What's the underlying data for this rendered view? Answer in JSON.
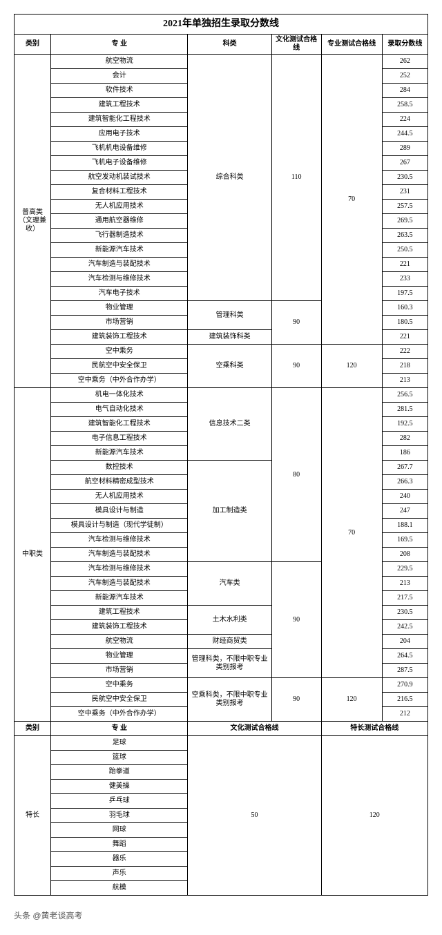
{
  "title": "2021年单独招生录取分数线",
  "headers": {
    "cat": "类别",
    "major": "专 业",
    "subj": "科类",
    "cul": "文化测试合格线",
    "pro": "专业测试合格线",
    "score": "录取分数线",
    "cul2": "文化测试合格线",
    "pro2": "特长测试合格线"
  },
  "cat1": "普高类（文理兼收）",
  "cat2": "中职类",
  "cat3": "特长",
  "subj_a": "综合科类",
  "subj_b": "管理科类",
  "subj_c": "建筑装饰科类",
  "subj_d": "空乘科类",
  "subj_e": "信息技术二类",
  "subj_f": "加工制造类",
  "subj_g": "汽车类",
  "subj_h": "土木水利类",
  "subj_i": "财经商贸类",
  "subj_j": "管理科类，不限中职专业类别报考",
  "subj_k": "空乘科类，不限中职专业类别报考",
  "cul_110": "110",
  "cul_90": "90",
  "cul_80": "80",
  "cul_50": "50",
  "pro_70": "70",
  "pro_120": "120",
  "p1": [
    {
      "m": "航空物流",
      "s": "262"
    },
    {
      "m": "会计",
      "s": "252"
    },
    {
      "m": "软件技术",
      "s": "284"
    },
    {
      "m": "建筑工程技术",
      "s": "258.5"
    },
    {
      "m": "建筑智能化工程技术",
      "s": "224"
    },
    {
      "m": "应用电子技术",
      "s": "244.5"
    },
    {
      "m": "飞机机电设备维修",
      "s": "289"
    },
    {
      "m": "飞机电子设备维修",
      "s": "267"
    },
    {
      "m": "航空发动机装试技术",
      "s": "230.5"
    },
    {
      "m": "复合材料工程技术",
      "s": "231"
    },
    {
      "m": "无人机应用技术",
      "s": "257.5"
    },
    {
      "m": "通用航空器维修",
      "s": "269.5"
    },
    {
      "m": "飞行器制造技术",
      "s": "263.5"
    },
    {
      "m": "新能源汽车技术",
      "s": "250.5"
    },
    {
      "m": "汽车制造与装配技术",
      "s": "221"
    },
    {
      "m": "汽车检测与维修技术",
      "s": "233"
    },
    {
      "m": "汽车电子技术",
      "s": "197.5"
    }
  ],
  "p1b": [
    {
      "m": "物业管理",
      "s": "160.3"
    },
    {
      "m": "市场营销",
      "s": "180.5"
    }
  ],
  "p1c": {
    "m": "建筑装饰工程技术",
    "s": "221"
  },
  "p1d": [
    {
      "m": "空中乘务",
      "s": "222"
    },
    {
      "m": "民航空中安全保卫",
      "s": "218"
    },
    {
      "m": "空中乘务（中外合作办学）",
      "s": "213"
    }
  ],
  "p2a": [
    {
      "m": "机电一体化技术",
      "s": "256.5"
    },
    {
      "m": "电气自动化技术",
      "s": "281.5"
    },
    {
      "m": "建筑智能化工程技术",
      "s": "192.5"
    },
    {
      "m": "电子信息工程技术",
      "s": "282"
    },
    {
      "m": "新能源汽车技术",
      "s": "186"
    }
  ],
  "p2b": [
    {
      "m": "数控技术",
      "s": "267.7"
    },
    {
      "m": "航空材料精密成型技术",
      "s": "266.3"
    },
    {
      "m": "无人机应用技术",
      "s": "240"
    },
    {
      "m": "模具设计与制造",
      "s": "247"
    },
    {
      "m": "模具设计与制造（现代学徒制）",
      "s": "188.1"
    },
    {
      "m": "汽车检测与维修技术",
      "s": "169.5"
    },
    {
      "m": "汽车制造与装配技术",
      "s": "208"
    }
  ],
  "p2c": [
    {
      "m": "汽车检测与维修技术",
      "s": "229.5"
    },
    {
      "m": "汽车制造与装配技术",
      "s": "213"
    },
    {
      "m": "新能源汽车技术",
      "s": "217.5"
    }
  ],
  "p2d": [
    {
      "m": "建筑工程技术",
      "s": "230.5"
    },
    {
      "m": "建筑装饰工程技术",
      "s": "242.5"
    }
  ],
  "p2e": {
    "m": "航空物流",
    "s": "204"
  },
  "p2f": [
    {
      "m": "物业管理",
      "s": "264.5"
    },
    {
      "m": "市场营销",
      "s": "287.5"
    }
  ],
  "p2g": [
    {
      "m": "空中乘务",
      "s": "270.9"
    },
    {
      "m": "民航空中安全保卫",
      "s": "216.5"
    },
    {
      "m": "空中乘务（中外合作办学）",
      "s": "212"
    }
  ],
  "p3": [
    "足球",
    "篮球",
    "跆拳道",
    "健美操",
    "乒乓球",
    "羽毛球",
    "网球",
    "舞蹈",
    "器乐",
    "声乐",
    "航模"
  ],
  "footer": "头条 @黄老谈高考"
}
